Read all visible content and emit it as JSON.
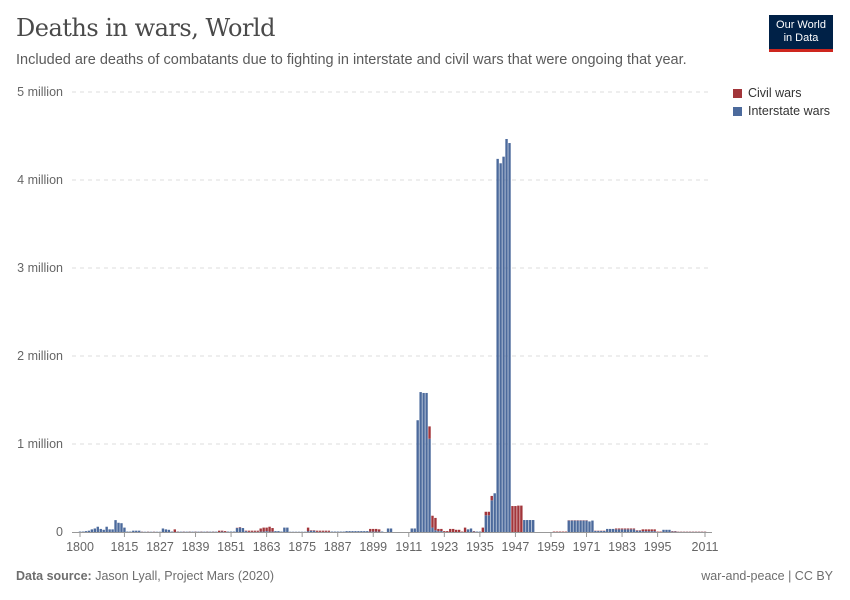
{
  "header": {
    "title": "Deaths in wars, World",
    "subtitle": "Included are deaths of combatants due to fighting in interstate and civil wars that were ongoing that year."
  },
  "logo": {
    "line1": "Our World",
    "line2": "in Data"
  },
  "footer": {
    "source_label": "Data source:",
    "source": "Jason Lyall, Project Mars (2020)",
    "right": "war-and-peace | CC BY"
  },
  "chart_data": {
    "type": "bar",
    "stacked": true,
    "title": "Deaths in wars, World",
    "xlabel": "",
    "ylabel": "",
    "ylim": [
      0,
      5000000
    ],
    "xlim": [
      1800,
      2011
    ],
    "y_ticks": [
      {
        "v": 0,
        "label": "0"
      },
      {
        "v": 1000000,
        "label": "1 million"
      },
      {
        "v": 2000000,
        "label": "2 million"
      },
      {
        "v": 3000000,
        "label": "3 million"
      },
      {
        "v": 4000000,
        "label": "4 million"
      },
      {
        "v": 5000000,
        "label": "5 million"
      }
    ],
    "x_ticks": [
      "1800",
      "1815",
      "1827",
      "1839",
      "1851",
      "1863",
      "1875",
      "1887",
      "1899",
      "1911",
      "1923",
      "1935",
      "1947",
      "1959",
      "1971",
      "1983",
      "1995",
      "2011"
    ],
    "grid": true,
    "legend_position": "top-right",
    "colors": {
      "Civil wars": "#a2353a",
      "Interstate wars": "#4c6a9c"
    },
    "start_year": 1800,
    "series": [
      {
        "name": "Civil wars",
        "values": [
          0,
          0,
          0,
          0,
          0,
          0,
          0,
          0,
          0,
          0,
          0,
          0,
          0,
          0,
          0,
          0,
          0,
          0,
          0,
          0,
          0,
          2000,
          0,
          2000,
          0,
          2000,
          0,
          0,
          0,
          0,
          0,
          0,
          30000,
          2000,
          0,
          2000,
          0,
          2000,
          0,
          2000,
          0,
          2000,
          0,
          2000,
          0,
          2000,
          0,
          15000,
          10000,
          10000,
          0,
          0,
          0,
          3000,
          5000,
          0,
          5000,
          13000,
          13000,
          13000,
          13000,
          35000,
          45000,
          40000,
          55000,
          40000,
          0,
          0,
          0,
          0,
          0,
          0,
          0,
          0,
          0,
          0,
          0,
          40000,
          5000,
          5000,
          13000,
          13000,
          13000,
          13000,
          13000,
          0,
          0,
          0,
          0,
          0,
          0,
          0,
          0,
          0,
          0,
          0,
          0,
          0,
          30000,
          30000,
          30000,
          25000,
          0,
          0,
          0,
          0,
          0,
          0,
          0,
          0,
          0,
          0,
          0,
          0,
          0,
          0,
          0,
          0,
          140000,
          135000,
          140000,
          25000,
          25000,
          10000,
          10000,
          35000,
          35000,
          25000,
          25000,
          5000,
          50000,
          0,
          0,
          5000,
          0,
          0,
          50000,
          40000,
          40000,
          50000,
          0,
          0,
          0,
          0,
          0,
          0,
          295000,
          295000,
          300000,
          300000,
          0,
          0,
          0,
          0,
          0,
          0,
          0,
          0,
          0,
          0,
          5000,
          5000,
          5000,
          5000,
          5000,
          3000,
          3000,
          3000,
          3000,
          3000,
          3000,
          3000,
          0,
          0,
          3000,
          3000,
          3000,
          3000,
          0,
          0,
          0,
          10000,
          10000,
          10000,
          10000,
          10000,
          10000,
          10000,
          5000,
          5000,
          20000,
          20000,
          20000,
          20000,
          20000,
          5000,
          5000,
          0,
          0,
          0,
          5000,
          5000,
          3000,
          3000,
          3000,
          3000,
          3000,
          3000,
          3000,
          3000,
          3000,
          3000
        ]
      },
      {
        "name": "Interstate wars",
        "values": [
          5000,
          5000,
          10000,
          15000,
          30000,
          40000,
          60000,
          35000,
          25000,
          60000,
          30000,
          30000,
          135000,
          105000,
          100000,
          50000,
          5000,
          5000,
          15000,
          15000,
          15000,
          3000,
          3000,
          3000,
          3000,
          3000,
          3000,
          3000,
          40000,
          30000,
          25000,
          5000,
          0,
          4000,
          4000,
          4000,
          4000,
          4000,
          4000,
          4000,
          4000,
          4000,
          4000,
          4000,
          4000,
          4000,
          4000,
          0,
          5000,
          0,
          5000,
          5000,
          5000,
          45000,
          50000,
          45000,
          10000,
          2000,
          2000,
          2000,
          2000,
          5000,
          5000,
          10000,
          5000,
          5000,
          10000,
          10000,
          5000,
          50000,
          50000,
          3000,
          3000,
          3000,
          3000,
          3000,
          3000,
          10000,
          15000,
          15000,
          2000,
          2000,
          2000,
          2000,
          2000,
          5000,
          5000,
          5000,
          5000,
          5000,
          10000,
          10000,
          10000,
          10000,
          10000,
          10000,
          10000,
          10000,
          5000,
          5000,
          5000,
          5000,
          5000,
          0,
          40000,
          40000,
          0,
          0,
          0,
          0,
          0,
          0,
          40000,
          40000,
          1270000,
          1590000,
          1580000,
          1580000,
          1060000,
          50000,
          20000,
          10000,
          10000,
          0,
          0,
          0,
          0,
          0,
          0,
          0,
          0,
          30000,
          40000,
          5000,
          5000,
          5000,
          0,
          190000,
          190000,
          360000,
          440000,
          4240000,
          4190000,
          4265000,
          4466000,
          4420000,
          0,
          0,
          0,
          0,
          136000,
          136000,
          136000,
          136000,
          0,
          0,
          0,
          0,
          0,
          0,
          0,
          0,
          0,
          0,
          0,
          130000,
          130000,
          130000,
          130000,
          130000,
          130000,
          130000,
          120000,
          130000,
          12000,
          12000,
          12000,
          12000,
          35000,
          35000,
          35000,
          30000,
          30000,
          30000,
          30000,
          30000,
          30000,
          30000,
          15000,
          15000,
          10000,
          10000,
          10000,
          10000,
          10000,
          0,
          0,
          25000,
          25000,
          25000,
          5000,
          5000,
          2000,
          2000,
          2000,
          2000,
          2000,
          2000,
          2000,
          2000,
          2000,
          2000
        ]
      }
    ]
  }
}
